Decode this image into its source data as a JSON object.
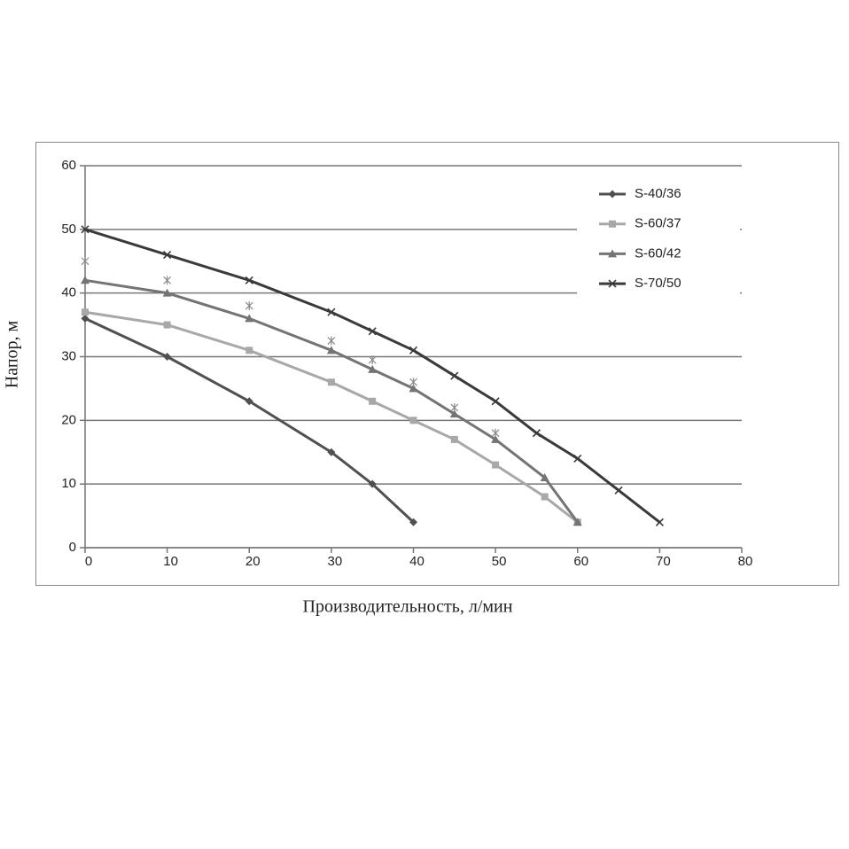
{
  "chart_data": {
    "type": "line",
    "x_label": "Производительность, л/мин",
    "y_label": "Напор, м",
    "xlim": [
      0,
      80
    ],
    "xticks": [
      0,
      10,
      20,
      30,
      40,
      50,
      60,
      70,
      80
    ],
    "ylim": [
      0,
      60
    ],
    "yticks": [
      0,
      10,
      20,
      30,
      40,
      50,
      60
    ],
    "grid": true,
    "legend": "upper right",
    "series": [
      {
        "name": "S-40/36",
        "color": "#505050",
        "marker": "diamond",
        "line": true,
        "x": [
          0,
          10,
          20,
          30,
          35,
          40
        ],
        "values": [
          36,
          30,
          23,
          15,
          10,
          4
        ]
      },
      {
        "name": "S-60/37",
        "color": "#a8a8a8",
        "marker": "square",
        "line": true,
        "x": [
          0,
          10,
          20,
          30,
          35,
          40,
          45,
          50,
          56,
          60
        ],
        "values": [
          37,
          35,
          31,
          26,
          23,
          20,
          17,
          13,
          8,
          4
        ]
      },
      {
        "name": "S-60/42",
        "color": "#747474",
        "marker": "triangle",
        "line": true,
        "x": [
          0,
          10,
          20,
          30,
          35,
          40,
          45,
          50,
          56,
          60
        ],
        "values": [
          42,
          40,
          36,
          31,
          28,
          25,
          21,
          17,
          11,
          4
        ]
      },
      {
        "name": "S-70/50",
        "color": "#3a3a3a",
        "marker": "x",
        "line": true,
        "x": [
          0,
          10,
          20,
          30,
          35,
          40,
          45,
          50,
          55,
          60,
          65,
          70
        ],
        "values": [
          50,
          46,
          42,
          37,
          34,
          31,
          27,
          23,
          18,
          14,
          9,
          4
        ]
      },
      {
        "color": "#8a8a8a",
        "marker": "star",
        "line": false,
        "x": [
          0,
          10,
          20,
          30,
          35,
          40,
          45,
          50
        ],
        "values": [
          45,
          42,
          38,
          32.5,
          29.5,
          26,
          22,
          18
        ]
      }
    ]
  }
}
